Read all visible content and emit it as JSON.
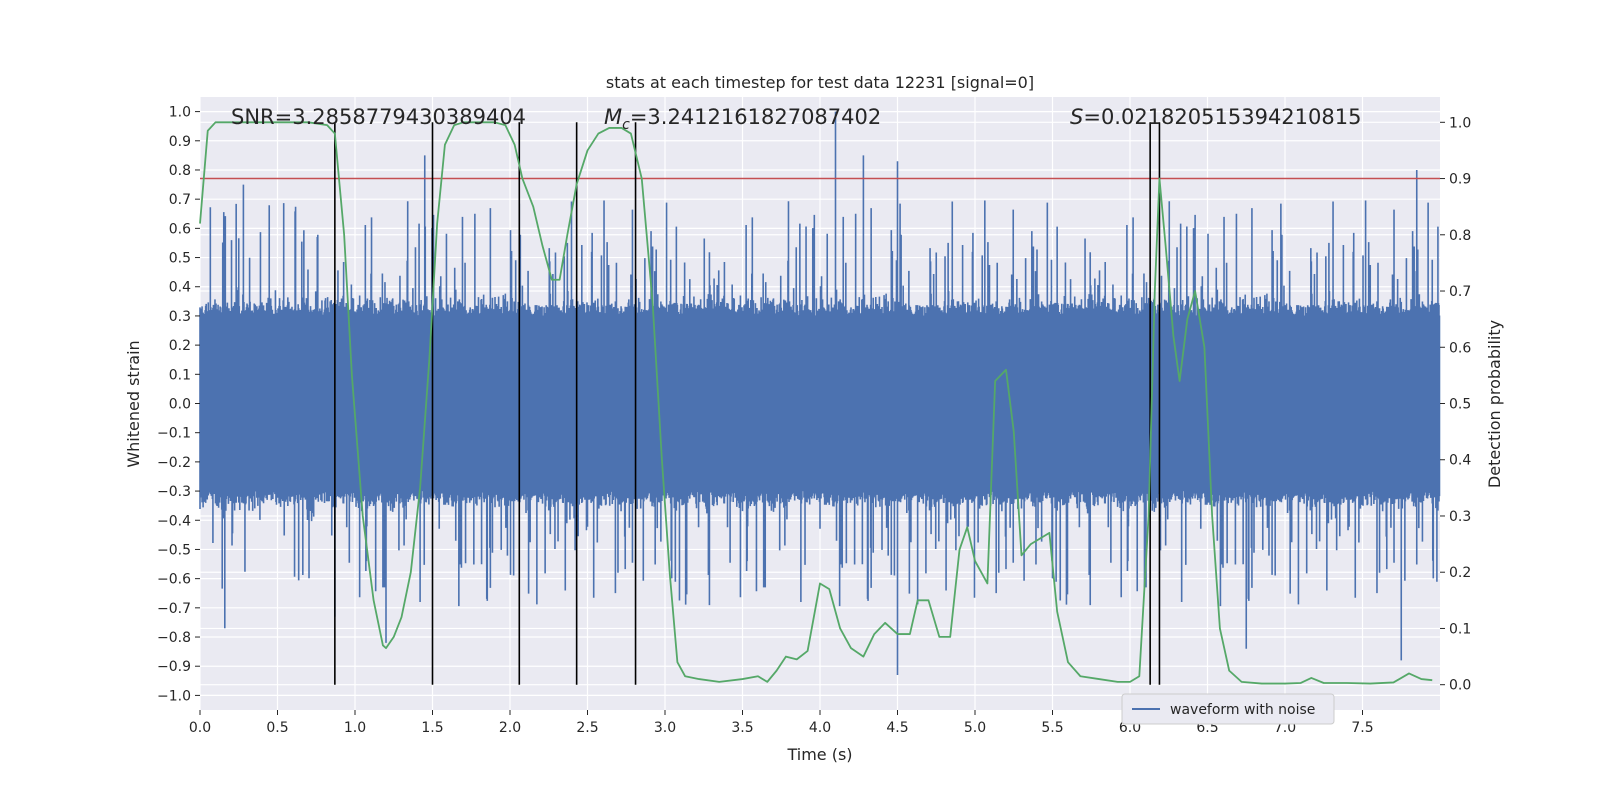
{
  "chart_data": {
    "type": "line",
    "title": "stats at each timestep for test data 12231 [signal=0]",
    "xlabel": "Time (s)",
    "ylabel_left": "Whitened strain",
    "ylabel_right": "Detection probability",
    "xlim": [
      0,
      8
    ],
    "ylim_left": [
      -1.05,
      1.05
    ],
    "ylim_right": [
      -0.045,
      1.045
    ],
    "x_ticks": [
      0.0,
      0.5,
      1.0,
      1.5,
      2.0,
      2.5,
      3.0,
      3.5,
      4.0,
      4.5,
      5.0,
      5.5,
      6.0,
      6.5,
      7.0,
      7.5
    ],
    "x_tick_labels": [
      "0.0",
      "0.5",
      "1.0",
      "1.5",
      "2.0",
      "2.5",
      "3.0",
      "3.5",
      "4.0",
      "4.5",
      "5.0",
      "5.5",
      "6.0",
      "6.5",
      "7.0",
      "7.5"
    ],
    "y_left_ticks": [
      -1.0,
      -0.9,
      -0.8,
      -0.7,
      -0.6,
      -0.5,
      -0.4,
      -0.3,
      -0.2,
      -0.1,
      0.0,
      0.1,
      0.2,
      0.3,
      0.4,
      0.5,
      0.6,
      0.7,
      0.8,
      0.9,
      1.0
    ],
    "y_left_tick_labels": [
      "−1.0",
      "−0.9",
      "−0.8",
      "−0.7",
      "−0.6",
      "−0.5",
      "−0.4",
      "−0.3",
      "−0.2",
      "−0.1",
      "0.0",
      "0.1",
      "0.2",
      "0.3",
      "0.4",
      "0.5",
      "0.6",
      "0.7",
      "0.8",
      "0.9",
      "1.0"
    ],
    "y_right_ticks": [
      0.0,
      0.1,
      0.2,
      0.3,
      0.4,
      0.5,
      0.6,
      0.7,
      0.8,
      0.9,
      1.0
    ],
    "y_right_tick_labels": [
      "0.0",
      "0.1",
      "0.2",
      "0.3",
      "0.4",
      "0.5",
      "0.6",
      "0.7",
      "0.8",
      "0.9",
      "1.0"
    ],
    "grid": true,
    "legend": {
      "position": "bottom-right",
      "entries": [
        {
          "label": "waveform with noise",
          "color": "#4c72b0"
        }
      ]
    },
    "annotations": {
      "snr": "SNR=3.2858779430389404",
      "mc_symbol": "M",
      "mc_sub": "c",
      "mc_value": "=3.2412161827087402",
      "s_symbol": "S",
      "s_value": "=0.021820515394210815"
    },
    "waveform": {
      "name": "waveform with noise",
      "color": "#4c72b0",
      "t_range": [
        0,
        8
      ],
      "typical_amplitude": 0.35,
      "spikes": [
        {
          "t": 0.28,
          "y": 0.75
        },
        {
          "t": 0.87,
          "y": -0.73
        },
        {
          "t": 1.45,
          "y": 0.85
        },
        {
          "t": 1.2,
          "y": -0.82
        },
        {
          "t": 0.16,
          "y": -0.77
        },
        {
          "t": 4.1,
          "y": 1.0
        },
        {
          "t": 4.28,
          "y": 0.85
        },
        {
          "t": 4.5,
          "y": 0.83
        },
        {
          "t": 4.5,
          "y": -0.93
        },
        {
          "t": 6.75,
          "y": -0.84
        },
        {
          "t": 7.75,
          "y": -0.88
        },
        {
          "t": 7.85,
          "y": 0.8
        }
      ]
    },
    "threshold": {
      "y_right": 0.9,
      "color": "#c44e52"
    },
    "vertical_lines": [
      0.87,
      1.5,
      2.06,
      2.43,
      2.81,
      6.13,
      6.19
    ],
    "vertical_line_range_right": [
      0.0,
      1.0
    ],
    "detection_probability": {
      "color": "#55a868",
      "points": [
        [
          0.0,
          0.82
        ],
        [
          0.05,
          0.985
        ],
        [
          0.1,
          1.0
        ],
        [
          0.3,
          1.0
        ],
        [
          0.5,
          1.0
        ],
        [
          0.7,
          1.0
        ],
        [
          0.82,
          0.995
        ],
        [
          0.87,
          0.98
        ],
        [
          0.93,
          0.8
        ],
        [
          0.98,
          0.55
        ],
        [
          1.05,
          0.3
        ],
        [
          1.12,
          0.15
        ],
        [
          1.18,
          0.07
        ],
        [
          1.2,
          0.065
        ],
        [
          1.25,
          0.085
        ],
        [
          1.3,
          0.12
        ],
        [
          1.36,
          0.2
        ],
        [
          1.42,
          0.35
        ],
        [
          1.48,
          0.58
        ],
        [
          1.53,
          0.82
        ],
        [
          1.58,
          0.96
        ],
        [
          1.64,
          0.995
        ],
        [
          1.7,
          1.0
        ],
        [
          1.8,
          1.0
        ],
        [
          1.9,
          1.0
        ],
        [
          1.97,
          0.995
        ],
        [
          2.03,
          0.96
        ],
        [
          2.08,
          0.9
        ],
        [
          2.15,
          0.85
        ],
        [
          2.21,
          0.78
        ],
        [
          2.27,
          0.72
        ],
        [
          2.32,
          0.72
        ],
        [
          2.37,
          0.8
        ],
        [
          2.43,
          0.89
        ],
        [
          2.5,
          0.95
        ],
        [
          2.57,
          0.98
        ],
        [
          2.64,
          0.99
        ],
        [
          2.72,
          0.99
        ],
        [
          2.78,
          0.98
        ],
        [
          2.85,
          0.9
        ],
        [
          2.92,
          0.68
        ],
        [
          2.98,
          0.4
        ],
        [
          3.03,
          0.2
        ],
        [
          3.08,
          0.04
        ],
        [
          3.13,
          0.015
        ],
        [
          3.22,
          0.01
        ],
        [
          3.35,
          0.005
        ],
        [
          3.5,
          0.01
        ],
        [
          3.6,
          0.015
        ],
        [
          3.66,
          0.005
        ],
        [
          3.72,
          0.025
        ],
        [
          3.78,
          0.05
        ],
        [
          3.85,
          0.045
        ],
        [
          3.92,
          0.06
        ],
        [
          4.0,
          0.18
        ],
        [
          4.06,
          0.17
        ],
        [
          4.13,
          0.1
        ],
        [
          4.2,
          0.065
        ],
        [
          4.28,
          0.05
        ],
        [
          4.35,
          0.09
        ],
        [
          4.42,
          0.11
        ],
        [
          4.5,
          0.09
        ],
        [
          4.58,
          0.09
        ],
        [
          4.63,
          0.15
        ],
        [
          4.7,
          0.15
        ],
        [
          4.77,
          0.085
        ],
        [
          4.84,
          0.085
        ],
        [
          4.9,
          0.24
        ],
        [
          4.95,
          0.28
        ],
        [
          5.0,
          0.22
        ],
        [
          5.08,
          0.18
        ],
        [
          5.13,
          0.54
        ],
        [
          5.2,
          0.56
        ],
        [
          5.25,
          0.45
        ],
        [
          5.3,
          0.23
        ],
        [
          5.36,
          0.25
        ],
        [
          5.42,
          0.26
        ],
        [
          5.48,
          0.27
        ],
        [
          5.53,
          0.13
        ],
        [
          5.6,
          0.04
        ],
        [
          5.68,
          0.015
        ],
        [
          5.8,
          0.01
        ],
        [
          5.92,
          0.005
        ],
        [
          6.0,
          0.005
        ],
        [
          6.06,
          0.015
        ],
        [
          6.12,
          0.3
        ],
        [
          6.16,
          0.7
        ],
        [
          6.19,
          0.9
        ],
        [
          6.23,
          0.78
        ],
        [
          6.28,
          0.62
        ],
        [
          6.32,
          0.54
        ],
        [
          6.37,
          0.65
        ],
        [
          6.42,
          0.7
        ],
        [
          6.48,
          0.6
        ],
        [
          6.53,
          0.3
        ],
        [
          6.58,
          0.1
        ],
        [
          6.64,
          0.025
        ],
        [
          6.72,
          0.005
        ],
        [
          6.85,
          0.002
        ],
        [
          7.0,
          0.002
        ],
        [
          7.1,
          0.003
        ],
        [
          7.17,
          0.012
        ],
        [
          7.25,
          0.003
        ],
        [
          7.4,
          0.003
        ],
        [
          7.55,
          0.002
        ],
        [
          7.7,
          0.004
        ],
        [
          7.8,
          0.02
        ],
        [
          7.88,
          0.01
        ],
        [
          7.95,
          0.008
        ]
      ]
    }
  }
}
